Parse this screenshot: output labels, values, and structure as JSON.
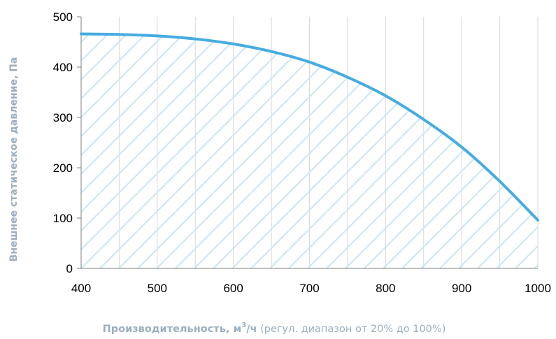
{
  "chart_data": {
    "type": "area",
    "xlabel_main": "Производительность, м",
    "xlabel_sup": "3",
    "xlabel_unit": "/ч",
    "xlabel_note": " (регул. диапазон от 20% до 100%)",
    "ylabel": "Внешнее статическое давление, Па",
    "xlim": [
      400,
      1000
    ],
    "ylim": [
      0,
      500
    ],
    "x_ticks": [
      400,
      500,
      600,
      700,
      800,
      900,
      1000
    ],
    "y_ticks": [
      0,
      100,
      200,
      300,
      400,
      500
    ],
    "x_gridlines": [
      450,
      500,
      550,
      600,
      650,
      700,
      750,
      800,
      850,
      900,
      950,
      1000
    ],
    "grid": true,
    "hatched_area": true,
    "series": [
      {
        "x": [
          400,
          450,
          500,
          550,
          600,
          650,
          700,
          750,
          800,
          850,
          900,
          950,
          1000
        ],
        "y": [
          466,
          465,
          462,
          456,
          446,
          431,
          410,
          380,
          343,
          296,
          241,
          173,
          96
        ]
      }
    ],
    "colors": {
      "line": "#45ace0",
      "hatch": "#cfe6f3",
      "grid": "#d9d9d9",
      "axis_title": "#9bafc1"
    }
  }
}
